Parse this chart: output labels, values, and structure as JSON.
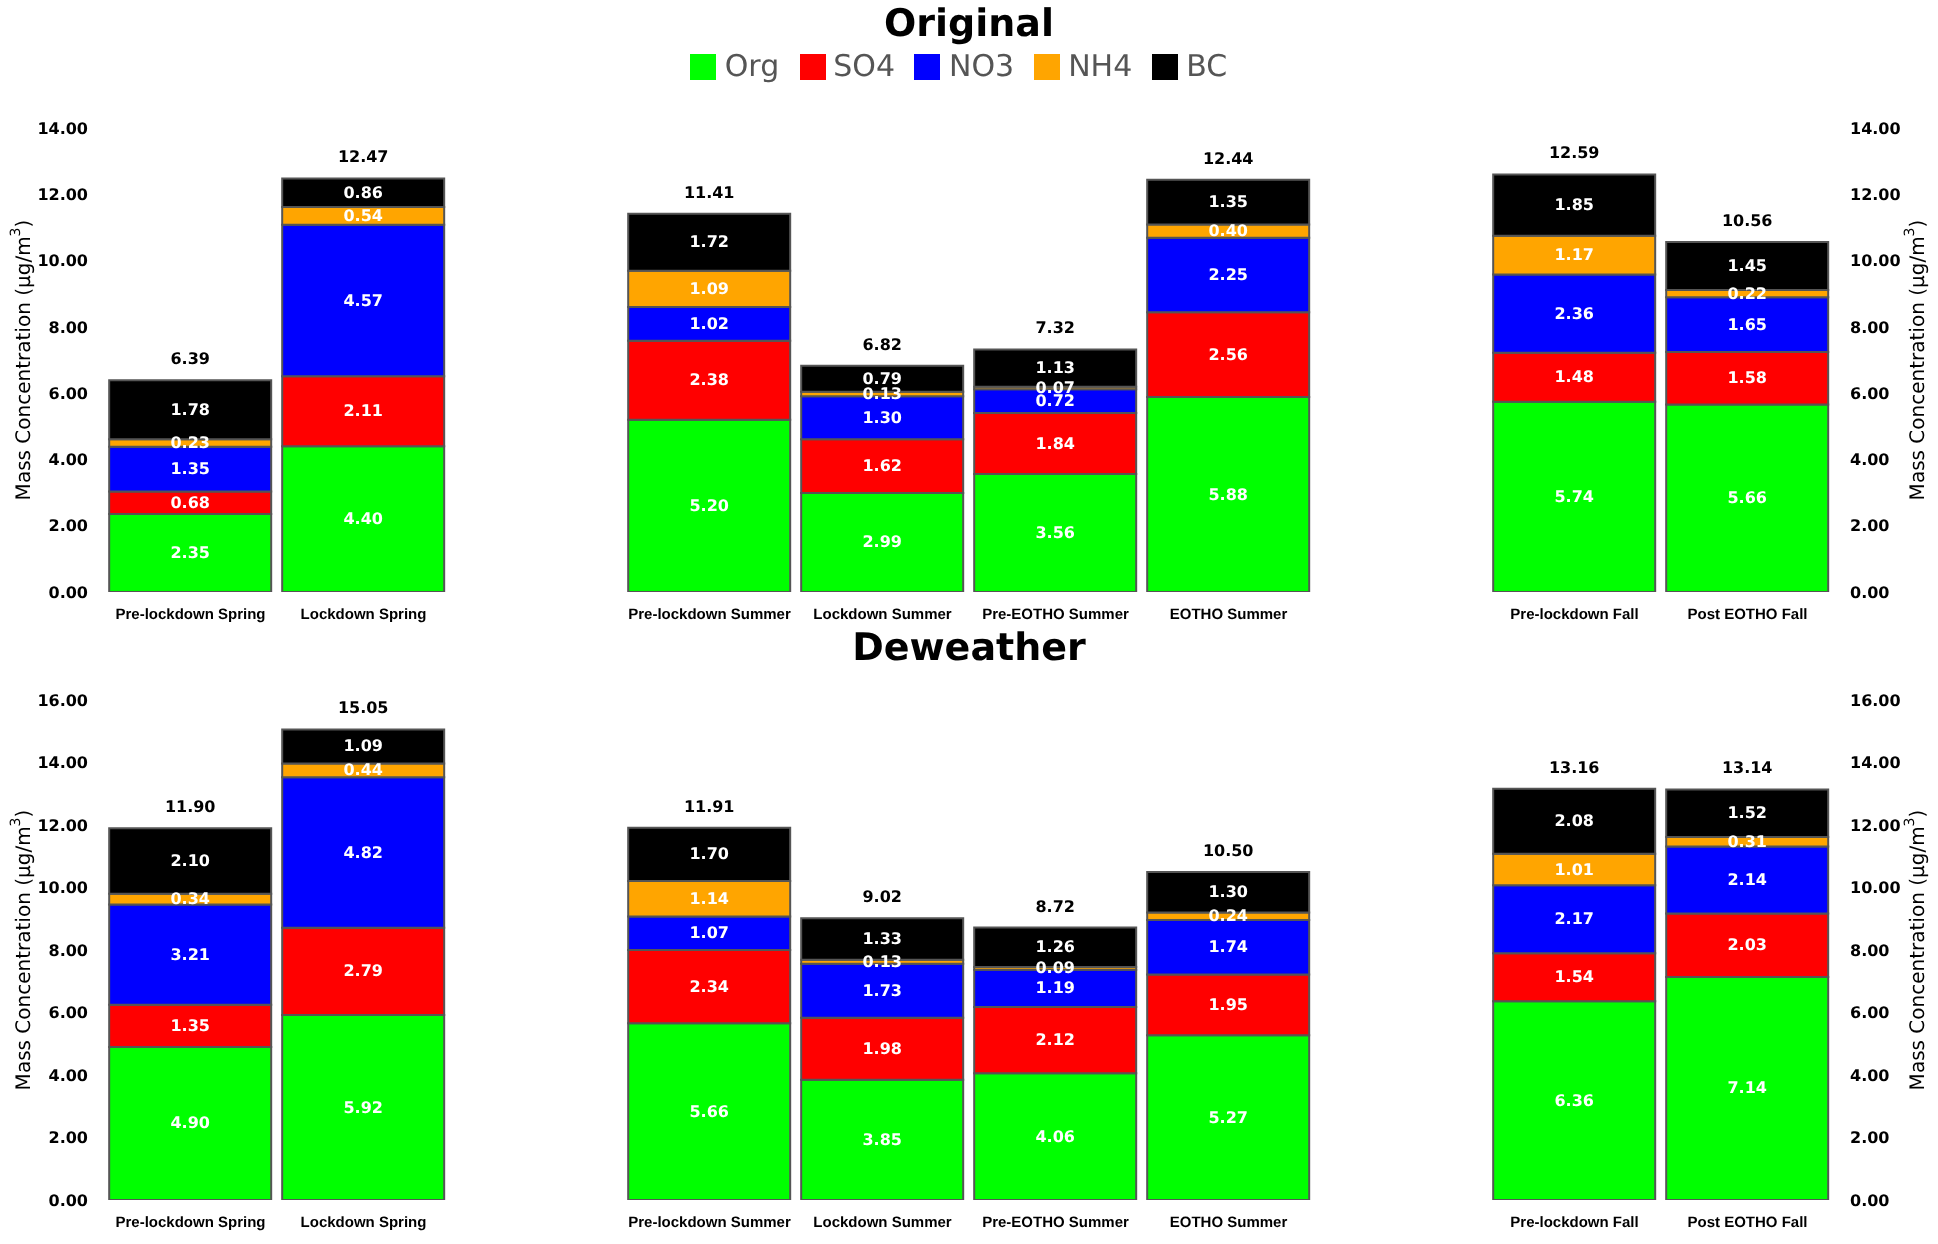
{
  "chart_data": [
    {
      "type": "bar",
      "title": "Original",
      "stacked": true,
      "legend": "top",
      "ylabel": "Mass Concentration (μg/m$^{3}$)",
      "y2label": "Mass Concentration (μg/m$^{3}$)",
      "categories": [
        "Pre-lockdown Spring",
        "Lockdown Spring",
        null,
        "Pre-lockdown Summer",
        "Lockdown Summer",
        "Pre-EOTHO Summer",
        "EOTHO Summer",
        null,
        "Pre-lockdown Fall",
        "Post EOTHO Fall"
      ],
      "ylim": [
        0,
        14
      ],
      "yticks": [
        {
          "value": 0,
          "label": "0.00"
        },
        {
          "value": 2,
          "label": "2.00"
        },
        {
          "value": 4,
          "label": "4.00"
        },
        {
          "value": 6,
          "label": "6.00"
        },
        {
          "value": 8,
          "label": "8.00"
        },
        {
          "value": 10,
          "label": "10.00"
        },
        {
          "value": 12,
          "label": "12.00"
        },
        {
          "value": 14,
          "label": "14.00"
        }
      ],
      "y2lim": [
        0,
        14
      ],
      "y2ticks": [
        {
          "value": 0,
          "label": "0.00"
        },
        {
          "value": 2,
          "label": "2.00"
        },
        {
          "value": 4,
          "label": "4.00"
        },
        {
          "value": 6,
          "label": "6.00"
        },
        {
          "value": 8,
          "label": "8.00"
        },
        {
          "value": 10,
          "label": "10.00"
        },
        {
          "value": 12,
          "label": "12.00"
        },
        {
          "value": 14,
          "label": "14.00"
        }
      ],
      "series": [
        {
          "name": "Org",
          "color": "#00ff00",
          "values": [
            2.35,
            4.4,
            null,
            5.2,
            2.99,
            3.56,
            5.88,
            null,
            5.74,
            5.66
          ],
          "value_labels": [
            "2.35",
            "4.40",
            null,
            "5.20",
            "2.99",
            "3.56",
            "5.88",
            null,
            "5.74",
            "5.66"
          ]
        },
        {
          "name": "SO4",
          "color": "#ff0000",
          "values": [
            0.68,
            2.11,
            null,
            2.38,
            1.62,
            1.84,
            2.56,
            null,
            1.48,
            1.58
          ],
          "value_labels": [
            "0.68",
            "2.11",
            null,
            "2.38",
            "1.62",
            "1.84",
            "2.56",
            null,
            "1.48",
            "1.58"
          ]
        },
        {
          "name": "NO3",
          "color": "#0000ff",
          "values": [
            1.35,
            4.57,
            null,
            1.02,
            1.3,
            0.72,
            2.25,
            null,
            2.36,
            1.65
          ],
          "value_labels": [
            "1.35",
            "4.57",
            null,
            "1.02",
            "1.30",
            "0.72",
            "2.25",
            null,
            "2.36",
            "1.65"
          ]
        },
        {
          "name": "NH4",
          "color": "#ffa500",
          "values": [
            0.23,
            0.54,
            null,
            1.09,
            0.13,
            0.07,
            0.4,
            null,
            1.17,
            0.22
          ],
          "value_labels": [
            "0.23",
            "0.54",
            null,
            "1.09",
            "0.13",
            "0.07",
            "0.40",
            null,
            "1.17",
            "0.22"
          ]
        },
        {
          "name": "BC",
          "color": "#000000",
          "values": [
            1.78,
            0.86,
            null,
            1.72,
            0.79,
            1.13,
            1.35,
            null,
            1.85,
            1.45
          ],
          "value_labels": [
            "1.78",
            "0.86",
            null,
            "1.72",
            "0.79",
            "1.13",
            "1.35",
            null,
            "1.85",
            "1.45"
          ]
        }
      ],
      "totals": [
        "6.39",
        "12.47",
        null,
        "11.41",
        "6.82",
        "7.32",
        "12.44",
        null,
        "12.59",
        "10.56"
      ]
    },
    {
      "type": "bar",
      "title": "Deweather",
      "stacked": true,
      "ylabel": "Mass Concentration (μg/m$^{3}$)",
      "y2label": "Mass Concentration (μg/m$^{3}$)",
      "categories": [
        "Pre-lockdown Spring",
        "Lockdown Spring",
        null,
        "Pre-lockdown Summer",
        "Lockdown Summer",
        "Pre-EOTHO Summer",
        "EOTHO Summer",
        null,
        "Pre-lockdown Fall",
        "Post EOTHO Fall"
      ],
      "ylim": [
        0,
        16
      ],
      "yticks": [
        {
          "value": 0,
          "label": "0.00"
        },
        {
          "value": 2,
          "label": "2.00"
        },
        {
          "value": 4,
          "label": "4.00"
        },
        {
          "value": 6,
          "label": "6.00"
        },
        {
          "value": 8,
          "label": "8.00"
        },
        {
          "value": 10,
          "label": "10.00"
        },
        {
          "value": 12,
          "label": "12.00"
        },
        {
          "value": 14,
          "label": "14.00"
        },
        {
          "value": 16,
          "label": "16.00"
        }
      ],
      "y2lim": [
        0,
        16
      ],
      "y2ticks": [
        {
          "value": 0,
          "label": "0.00"
        },
        {
          "value": 2,
          "label": "2.00"
        },
        {
          "value": 4,
          "label": "4.00"
        },
        {
          "value": 6,
          "label": "6.00"
        },
        {
          "value": 8,
          "label": "8.00"
        },
        {
          "value": 10,
          "label": "10.00"
        },
        {
          "value": 12,
          "label": "12.00"
        },
        {
          "value": 14,
          "label": "14.00"
        },
        {
          "value": 16,
          "label": "16.00"
        }
      ],
      "series": [
        {
          "color": "#00ff00",
          "values": [
            4.9,
            5.92,
            null,
            5.66,
            3.85,
            4.06,
            5.27,
            null,
            6.36,
            7.14
          ],
          "value_labels": [
            "4.90",
            "5.92",
            null,
            "5.66",
            "3.85",
            "4.06",
            "5.27",
            null,
            "6.36",
            "7.14"
          ]
        },
        {
          "color": "#ff0000",
          "values": [
            1.35,
            2.79,
            null,
            2.34,
            1.98,
            2.12,
            1.95,
            null,
            1.54,
            2.03
          ],
          "value_labels": [
            "1.35",
            "2.79",
            null,
            "2.34",
            "1.98",
            "2.12",
            "1.95",
            null,
            "1.54",
            "2.03"
          ]
        },
        {
          "color": "#0000ff",
          "values": [
            3.21,
            4.82,
            null,
            1.07,
            1.73,
            1.19,
            1.74,
            null,
            2.17,
            2.14
          ],
          "value_labels": [
            "3.21",
            "4.82",
            null,
            "1.07",
            "1.73",
            "1.19",
            "1.74",
            null,
            "2.17",
            "2.14"
          ]
        },
        {
          "color": "#ffa500",
          "values": [
            0.34,
            0.44,
            null,
            1.14,
            0.13,
            0.09,
            0.24,
            null,
            1.01,
            0.31
          ],
          "value_labels": [
            "0.34",
            "0.44",
            null,
            "1.14",
            "0.13",
            "0.09",
            "0.24",
            null,
            "1.01",
            "0.31"
          ]
        },
        {
          "color": "#000000",
          "values": [
            2.1,
            1.09,
            null,
            1.7,
            1.33,
            1.26,
            1.3,
            null,
            2.08,
            1.52
          ],
          "value_labels": [
            "2.10",
            "1.09",
            null,
            "1.70",
            "1.33",
            "1.26",
            "1.30",
            null,
            "2.08",
            "1.52"
          ]
        }
      ],
      "totals": [
        "11.90",
        "15.05",
        null,
        "11.91",
        "9.02",
        "8.72",
        "10.50",
        null,
        "13.16",
        "13.14"
      ]
    }
  ]
}
